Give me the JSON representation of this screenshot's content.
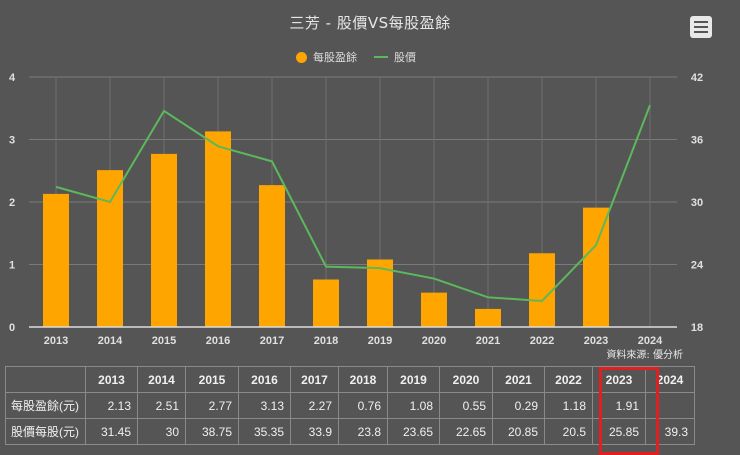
{
  "title": "三芳 - 股價VS每股盈餘",
  "menu_icon": "hamburger-menu-icon",
  "legend": [
    {
      "label": "每股盈餘",
      "color": "#FFA500",
      "shape": "circle"
    },
    {
      "label": "股價",
      "color": "#5CB85C",
      "shape": "line"
    }
  ],
  "source_text": "資料來源: 優分析",
  "colors": {
    "background": "#555555",
    "bar": "#FFA500",
    "line": "#5CB85C",
    "grid": "#777777",
    "highlight": "#E02020"
  },
  "chart_data": {
    "type": "bar+line",
    "title": "三芳 - 股價VS每股盈餘",
    "categories": [
      "2013",
      "2014",
      "2015",
      "2016",
      "2017",
      "2018",
      "2019",
      "2020",
      "2021",
      "2022",
      "2023",
      "2024"
    ],
    "series": [
      {
        "name": "每股盈餘",
        "type": "bar",
        "axis": "left",
        "values": [
          2.13,
          2.51,
          2.77,
          3.13,
          2.27,
          0.76,
          1.08,
          0.55,
          0.29,
          1.18,
          1.91,
          null
        ]
      },
      {
        "name": "股價",
        "type": "line",
        "axis": "right",
        "values": [
          31.45,
          30,
          38.75,
          35.35,
          33.9,
          23.8,
          23.65,
          22.65,
          20.85,
          20.5,
          25.85,
          39.3
        ]
      }
    ],
    "left_axis": {
      "ticks": [
        0,
        1,
        2,
        3,
        4
      ],
      "range": [
        0,
        4
      ]
    },
    "right_axis": {
      "ticks": [
        18,
        24,
        30,
        36,
        42
      ],
      "range": [
        18,
        42
      ]
    },
    "grid": true,
    "legend_position": "top"
  },
  "table": {
    "header": [
      "",
      "2013",
      "2014",
      "2015",
      "2016",
      "2017",
      "2018",
      "2019",
      "2020",
      "2021",
      "2022",
      "2023",
      "2024"
    ],
    "rows": [
      {
        "label": "每股盈餘(元)",
        "values": [
          "2.13",
          "2.51",
          "2.77",
          "3.13",
          "2.27",
          "0.76",
          "1.08",
          "0.55",
          "0.29",
          "1.18",
          "1.91",
          ""
        ]
      },
      {
        "label": "股價每股(元)",
        "values": [
          "31.45",
          "30",
          "38.75",
          "35.35",
          "33.9",
          "23.8",
          "23.65",
          "22.65",
          "20.85",
          "20.5",
          "25.85",
          "39.3"
        ]
      }
    ],
    "highlighted_column": "2023"
  }
}
